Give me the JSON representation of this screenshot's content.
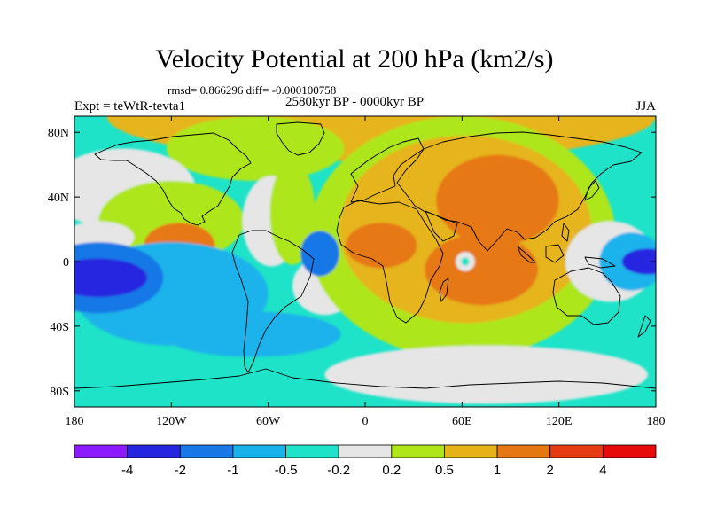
{
  "header": {
    "title": "Velocity Potential at 200 hPa (km2/s)",
    "stats": "rmsd= 0.866296 diff= -0.000100758",
    "period": "2580kyr BP - 0000kyr BP",
    "experiment": "Expt = teWtR-tevta1",
    "season": "JJA"
  },
  "chart_data": {
    "type": "heatmap",
    "title": "Velocity Potential at 200 hPa (km2/s)",
    "projection": "cylindrical equidistant",
    "xlim": [
      -180,
      180
    ],
    "ylim": [
      -90,
      90
    ],
    "x_ticks": [
      {
        "value": -180,
        "label": "180"
      },
      {
        "value": -120,
        "label": "120W"
      },
      {
        "value": -60,
        "label": "60W"
      },
      {
        "value": 0,
        "label": "0"
      },
      {
        "value": 60,
        "label": "60E"
      },
      {
        "value": 120,
        "label": "120E"
      },
      {
        "value": 180,
        "label": "180"
      }
    ],
    "y_ticks": [
      {
        "value": 80,
        "label": "80N"
      },
      {
        "value": 40,
        "label": "40N"
      },
      {
        "value": 0,
        "label": "0"
      },
      {
        "value": -40,
        "label": "40S"
      },
      {
        "value": -80,
        "label": "80S"
      }
    ],
    "colorbar": {
      "levels": [
        -4,
        -2,
        -1,
        -0.5,
        -0.2,
        0.2,
        0.5,
        1,
        2,
        4
      ],
      "labels": [
        "-4",
        "-2",
        "-1",
        "-0.5",
        "-0.2",
        "0.2",
        "0.5",
        "1",
        "2",
        "4"
      ],
      "colors": [
        "#8c1aff",
        "#2626e0",
        "#1978e6",
        "#1ab2eb",
        "#1ee3c8",
        "#e6e6e6",
        "#aee61a",
        "#e6b41a",
        "#e67814",
        "#e63c14",
        "#e60a0a"
      ]
    },
    "base_color_index": 4,
    "features": [
      {
        "name": "north-polar-band",
        "lon": 10,
        "lat": 90,
        "rx": 170,
        "ry": 28,
        "level": 7
      },
      {
        "name": "north-atlantic-positive",
        "lon": -68,
        "lat": 70,
        "rx": 55,
        "ry": 20,
        "level": 6
      },
      {
        "name": "north-america-neutral",
        "lon": -150,
        "lat": 45,
        "rx": 45,
        "ry": 25,
        "level": 5
      },
      {
        "name": "north-pacific-positive",
        "lon": -120,
        "lat": 25,
        "rx": 45,
        "ry": 25,
        "level": 6
      },
      {
        "name": "east-pacific-max",
        "lon": -115,
        "lat": 10,
        "rx": 22,
        "ry": 14,
        "level": 8
      },
      {
        "name": "atlantic-neutral",
        "lon": -58,
        "lat": 25,
        "rx": 18,
        "ry": 28,
        "level": 5
      },
      {
        "name": "atlantic-positive",
        "lon": -45,
        "lat": 30,
        "rx": 14,
        "ry": 32,
        "level": 6
      },
      {
        "name": "south-atlantic-neutral",
        "lon": -25,
        "lat": -15,
        "rx": 20,
        "ry": 18,
        "level": 5
      },
      {
        "name": "old-world-positive",
        "lon": 60,
        "lat": 15,
        "rx": 95,
        "ry": 75,
        "level": 6
      },
      {
        "name": "eurasia-africa-high",
        "lon": 62,
        "lat": 20,
        "rx": 78,
        "ry": 58,
        "level": 7
      },
      {
        "name": "asia-max",
        "lon": 82,
        "lat": 38,
        "rx": 38,
        "ry": 28,
        "level": 8
      },
      {
        "name": "africa-max",
        "lon": 10,
        "lat": 10,
        "rx": 22,
        "ry": 14,
        "level": 8
      },
      {
        "name": "indian-ocean-max",
        "lon": 72,
        "lat": -5,
        "rx": 35,
        "ry": 22,
        "level": 8
      },
      {
        "name": "southern-ocean-neutral",
        "lon": 75,
        "lat": -70,
        "rx": 100,
        "ry": 18,
        "level": 5
      },
      {
        "name": "pacific-neutral",
        "lon": -165,
        "lat": 15,
        "rx": 22,
        "ry": 10,
        "level": 5
      },
      {
        "name": "central-pacific-negative",
        "lon": -120,
        "lat": -20,
        "rx": 60,
        "ry": 32,
        "level": 3
      },
      {
        "name": "south-pacific-negative",
        "lon": -165,
        "lat": -10,
        "rx": 40,
        "ry": 22,
        "level": 2
      },
      {
        "name": "south-pacific-min",
        "lon": -165,
        "lat": -10,
        "rx": 30,
        "ry": 12,
        "level": 1
      },
      {
        "name": "south-america-negative",
        "lon": -28,
        "lat": 5,
        "rx": 12,
        "ry": 14,
        "level": 2
      },
      {
        "name": "south-atlantic-negative",
        "lon": -70,
        "lat": -45,
        "rx": 55,
        "ry": 14,
        "level": 3
      },
      {
        "name": "western-pacific-neutral",
        "lon": 152,
        "lat": 0,
        "rx": 28,
        "ry": 25,
        "level": 5
      },
      {
        "name": "western-pacific-negative",
        "lon": 165,
        "lat": 0,
        "rx": 20,
        "ry": 18,
        "level": 3
      },
      {
        "name": "western-pacific-min",
        "lon": 175,
        "lat": 0,
        "rx": 16,
        "ry": 8,
        "level": 1
      },
      {
        "name": "indian-ocean-eddy-neutral",
        "lon": 62,
        "lat": 0,
        "rx": 6,
        "ry": 6,
        "level": 5
      },
      {
        "name": "indian-ocean-eddy-core",
        "lon": 62,
        "lat": 0,
        "rx": 2.5,
        "ry": 2.5,
        "level": 4
      }
    ]
  }
}
